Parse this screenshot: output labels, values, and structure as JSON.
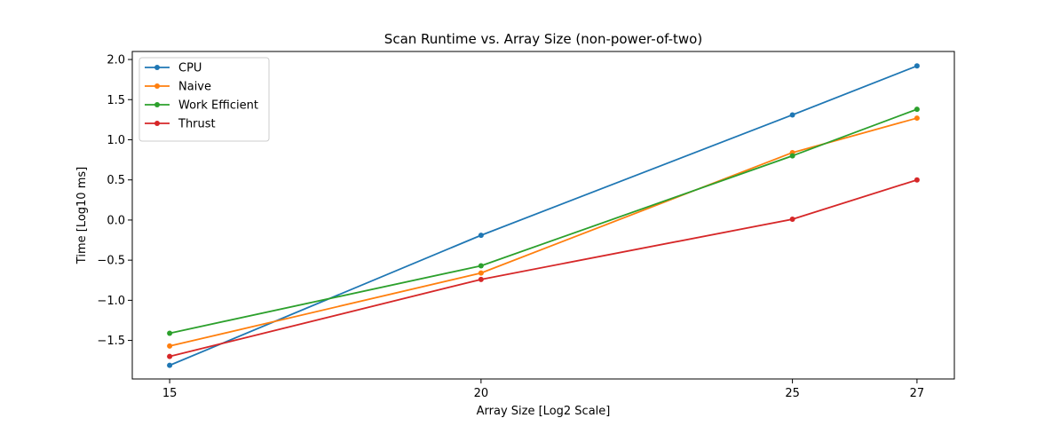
{
  "chart_data": {
    "type": "line",
    "title": "Scan Runtime vs. Array Size (non-power-of-two)",
    "xlabel": "Array Size [Log2 Scale]",
    "ylabel": "Time [Log10 ms]",
    "x": [
      15,
      20,
      25,
      27
    ],
    "xticks": [
      "15",
      "20",
      "25",
      "27"
    ],
    "xlim": [
      14.4,
      27.6
    ],
    "ylim": [
      -1.98,
      2.1
    ],
    "yticks": [
      "−1.5",
      "−1.0",
      "−0.5",
      "0.0",
      "0.5",
      "1.0",
      "1.5",
      "2.0"
    ],
    "ytick_values": [
      -1.5,
      -1.0,
      -0.5,
      0.0,
      0.5,
      1.0,
      1.5,
      2.0
    ],
    "grid": false,
    "legend_position": "top-left",
    "series": [
      {
        "name": "CPU",
        "color": "#1f77b4",
        "values": [
          -1.81,
          -0.19,
          1.31,
          1.92
        ]
      },
      {
        "name": "Naive",
        "color": "#ff7f0e",
        "values": [
          -1.57,
          -0.66,
          0.84,
          1.27
        ]
      },
      {
        "name": "Work Efficient",
        "color": "#2ca02c",
        "values": [
          -1.41,
          -0.57,
          0.8,
          1.38
        ]
      },
      {
        "name": "Thrust",
        "color": "#d62728",
        "values": [
          -1.7,
          -0.74,
          0.01,
          0.5
        ]
      }
    ]
  }
}
